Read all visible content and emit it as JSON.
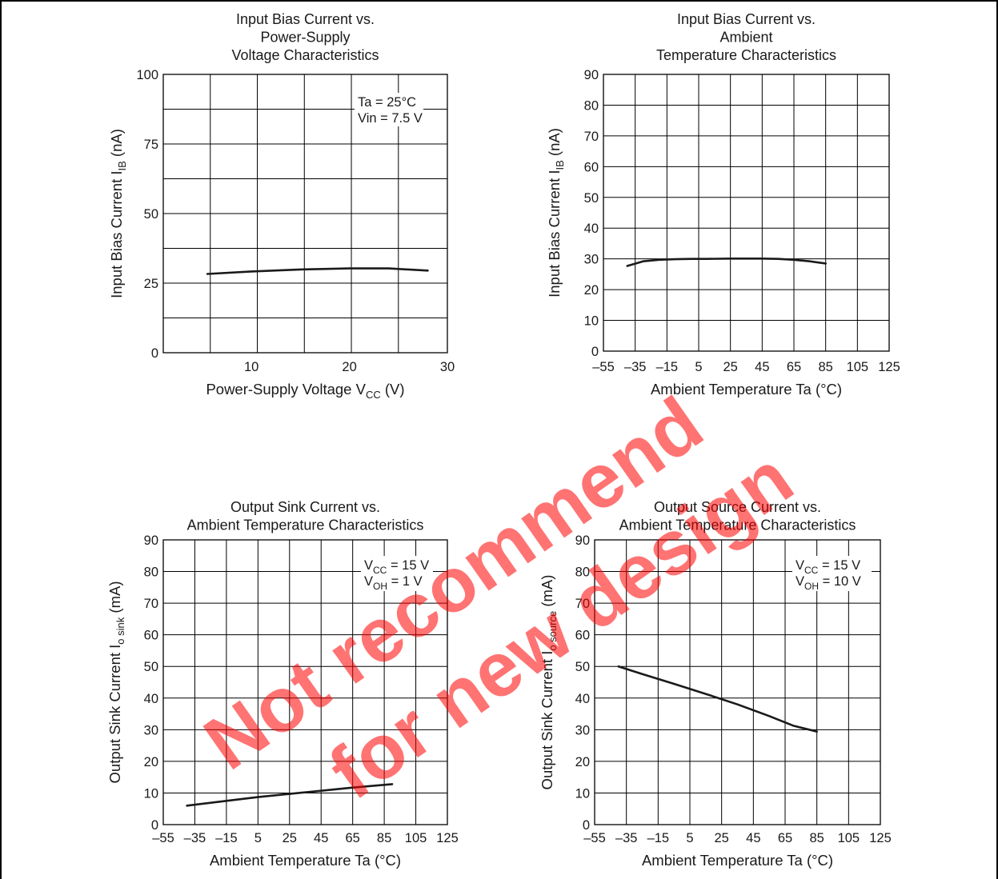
{
  "colors": {
    "line": "#1a1a1a",
    "grid": "#000000",
    "text": "#1a1a1a",
    "watermark": "#ff0000"
  },
  "watermark": {
    "line1": "Not recommend",
    "line2": "for new design"
  },
  "chart_data": [
    {
      "type": "line",
      "title_lines": [
        "Input Bias Current vs.",
        "Power-Supply",
        "Voltage Characteristics"
      ],
      "xlabel": "Power-Supply Voltage V",
      "xlabel_sub": "CC",
      "xlabel_tail": " (V)",
      "ylabel": "Input Bias Current I",
      "ylabel_sub": "IB",
      "ylabel_tail": " (nA)",
      "xlim": [
        1,
        30
      ],
      "ylim": [
        0,
        100
      ],
      "x_ticks": [
        10,
        20,
        30
      ],
      "x_tick_labels": [
        "10",
        "20",
        "30"
      ],
      "x_grid": [
        5.8,
        10.6,
        15.4,
        20.2,
        25,
        30
      ],
      "y_ticks": [
        0,
        25,
        50,
        75,
        100
      ],
      "y_tick_labels": [
        "0",
        "25",
        "50",
        "75",
        "100"
      ],
      "y_grid": [
        12.5,
        25,
        37.5,
        50,
        62.5,
        75,
        87.5,
        100
      ],
      "grid": true,
      "legend_lines": [
        {
          "main": "Ta = 25°C",
          "sub": "",
          "tail": ""
        },
        {
          "main": "Vin = 7.5 V",
          "sub": "",
          "tail": ""
        }
      ],
      "series": [
        {
          "x": [
            5.5,
            10,
            15,
            20,
            24,
            28
          ],
          "y": [
            28.3,
            29.2,
            29.9,
            30.3,
            30.3,
            29.5
          ]
        }
      ]
    },
    {
      "type": "line",
      "title_lines": [
        "Input Bias Current vs.",
        "Ambient",
        "Temperature Characteristics"
      ],
      "xlabel": "Ambient Temperature Ta (°C)",
      "xlabel_sub": "",
      "xlabel_tail": "",
      "ylabel": "Input Bias Current I",
      "ylabel_sub": "IB",
      "ylabel_tail": " (nA)",
      "xlim": [
        -55,
        125
      ],
      "ylim": [
        0,
        90
      ],
      "x_ticks": [
        -55,
        -35,
        -15,
        5,
        25,
        45,
        65,
        85,
        105,
        125
      ],
      "x_tick_labels": [
        "–55",
        "–35",
        "–15",
        "5",
        "25",
        "45",
        "65",
        "85",
        "105",
        "125"
      ],
      "x_grid": [
        -55,
        -35,
        -15,
        5,
        25,
        45,
        65,
        85,
        105,
        125
      ],
      "y_ticks": [
        0,
        10,
        20,
        30,
        40,
        50,
        60,
        70,
        80,
        90
      ],
      "y_tick_labels": [
        "0",
        "10",
        "20",
        "30",
        "40",
        "50",
        "60",
        "70",
        "80",
        "90"
      ],
      "y_grid": [
        0,
        10,
        20,
        30,
        40,
        50,
        60,
        70,
        80,
        90
      ],
      "grid": true,
      "legend_lines": [],
      "series": [
        {
          "x": [
            -40,
            -30,
            -20,
            -10,
            0,
            10,
            25,
            45,
            55,
            65,
            75,
            85
          ],
          "y": [
            27.7,
            29.2,
            29.7,
            29.9,
            30,
            30,
            30.1,
            30.1,
            30,
            29.7,
            29.2,
            28.5
          ]
        }
      ]
    },
    {
      "type": "line",
      "title_lines": [
        "Output Sink Current vs.",
        "Ambient Temperature Characteristics"
      ],
      "xlabel": "Ambient Temperature Ta (°C)",
      "xlabel_sub": "",
      "xlabel_tail": "",
      "ylabel": "Output Sink Current I",
      "ylabel_sub": "o sink",
      "ylabel_tail": " (mA)",
      "xlim": [
        -55,
        125
      ],
      "ylim": [
        0,
        90
      ],
      "x_ticks": [
        -55,
        -35,
        -15,
        5,
        25,
        45,
        65,
        85,
        105,
        125
      ],
      "x_tick_labels": [
        "–55",
        "–35",
        "–15",
        "5",
        "25",
        "45",
        "65",
        "85",
        "105",
        "125"
      ],
      "x_grid": [
        -55,
        -35,
        -15,
        5,
        25,
        45,
        65,
        85,
        105,
        125
      ],
      "y_ticks": [
        0,
        10,
        20,
        30,
        40,
        50,
        60,
        70,
        80,
        90
      ],
      "y_tick_labels": [
        "0",
        "10",
        "20",
        "30",
        "40",
        "50",
        "60",
        "70",
        "80",
        "90"
      ],
      "y_grid": [
        0,
        10,
        20,
        30,
        40,
        50,
        60,
        70,
        80,
        90
      ],
      "grid": true,
      "legend_lines": [
        {
          "main": "V",
          "sub": "CC",
          "tail": " = 15 V"
        },
        {
          "main": "V",
          "sub": "OH",
          "tail": " = 1 V"
        }
      ],
      "series": [
        {
          "x": [
            -40,
            -15,
            5,
            25,
            45,
            65,
            90
          ],
          "y": [
            6,
            7.5,
            8.7,
            9.7,
            10.7,
            11.7,
            12.8
          ]
        }
      ]
    },
    {
      "type": "line",
      "title_lines": [
        "Output Source Current vs.",
        "Ambient Temperature Characteristics"
      ],
      "xlabel": "Ambient Temperature Ta (°C)",
      "xlabel_sub": "",
      "xlabel_tail": "",
      "ylabel": "Output Sink Current I",
      "ylabel_sub": "o source",
      "ylabel_tail": " (mA)",
      "xlim": [
        -55,
        125
      ],
      "ylim": [
        0,
        90
      ],
      "x_ticks": [
        -55,
        -35,
        -15,
        5,
        25,
        45,
        65,
        85,
        105,
        125
      ],
      "x_tick_labels": [
        "–55",
        "–35",
        "–15",
        "5",
        "25",
        "45",
        "65",
        "85",
        "105",
        "125"
      ],
      "x_grid": [
        -55,
        -35,
        -15,
        5,
        25,
        45,
        65,
        85,
        105,
        125
      ],
      "y_ticks": [
        0,
        10,
        20,
        30,
        40,
        50,
        60,
        70,
        80,
        90
      ],
      "y_tick_labels": [
        "0",
        "10",
        "20",
        "30",
        "40",
        "50",
        "60",
        "70",
        "80",
        "90"
      ],
      "y_grid": [
        0,
        10,
        20,
        30,
        40,
        50,
        60,
        70,
        80,
        90
      ],
      "grid": true,
      "legend_lines": [
        {
          "main": "V",
          "sub": "CC",
          "tail": " = 15 V"
        },
        {
          "main": "V",
          "sub": "OH",
          "tail": " = 10 V"
        }
      ],
      "series": [
        {
          "x": [
            -40,
            -25,
            -5,
            15,
            35,
            55,
            70,
            85
          ],
          "y": [
            50,
            47.6,
            44.5,
            41.3,
            38,
            34.3,
            31.3,
            29.4
          ]
        }
      ]
    }
  ]
}
